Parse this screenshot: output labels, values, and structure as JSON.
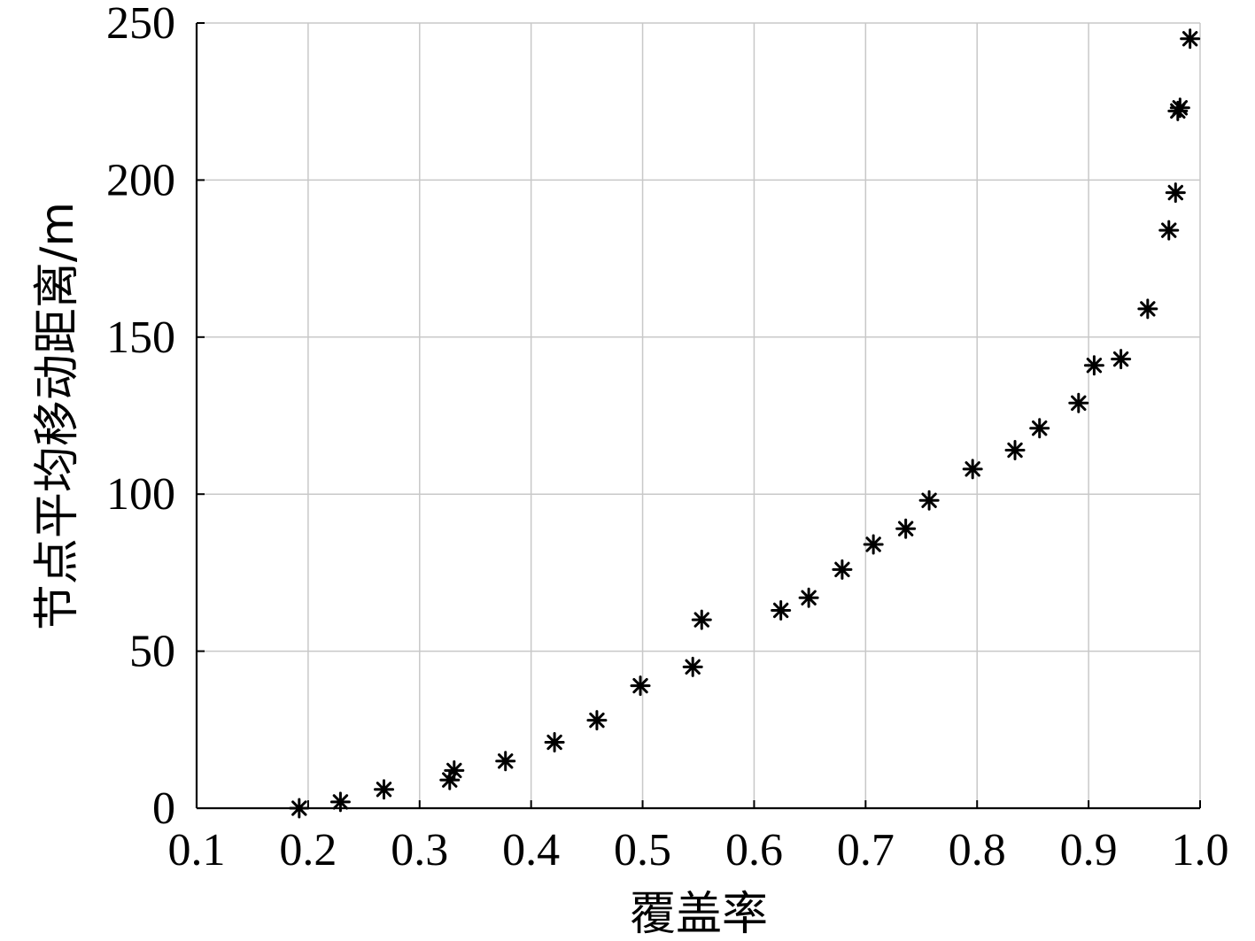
{
  "chart_data": {
    "type": "scatter",
    "title": "",
    "xlabel": "覆盖率",
    "ylabel": "节点平均移动距离/m",
    "xlim": [
      0.1,
      1.0
    ],
    "ylim": [
      0,
      250
    ],
    "xticks": [
      "0.1",
      "0.2",
      "0.3",
      "0.4",
      "0.5",
      "0.6",
      "0.7",
      "0.8",
      "0.9",
      "1.0"
    ],
    "xtick_values": [
      0.1,
      0.2,
      0.3,
      0.4,
      0.5,
      0.6,
      0.7,
      0.8,
      0.9,
      1.0
    ],
    "yticks": [
      "0",
      "50",
      "100",
      "150",
      "200",
      "250"
    ],
    "ytick_values": [
      0,
      50,
      100,
      150,
      200,
      250
    ],
    "grid": true,
    "marker": "asterisk",
    "marker_color": "#000000",
    "series": [
      {
        "points": [
          {
            "x": 0.192,
            "y": 0
          },
          {
            "x": 0.229,
            "y": 2
          },
          {
            "x": 0.268,
            "y": 6
          },
          {
            "x": 0.327,
            "y": 9
          },
          {
            "x": 0.331,
            "y": 12
          },
          {
            "x": 0.377,
            "y": 15
          },
          {
            "x": 0.421,
            "y": 21
          },
          {
            "x": 0.459,
            "y": 28
          },
          {
            "x": 0.498,
            "y": 39
          },
          {
            "x": 0.545,
            "y": 45
          },
          {
            "x": 0.553,
            "y": 60
          },
          {
            "x": 0.624,
            "y": 63
          },
          {
            "x": 0.649,
            "y": 67
          },
          {
            "x": 0.679,
            "y": 76
          },
          {
            "x": 0.707,
            "y": 84
          },
          {
            "x": 0.736,
            "y": 89
          },
          {
            "x": 0.757,
            "y": 98
          },
          {
            "x": 0.796,
            "y": 108
          },
          {
            "x": 0.834,
            "y": 114
          },
          {
            "x": 0.856,
            "y": 121
          },
          {
            "x": 0.891,
            "y": 129
          },
          {
            "x": 0.905,
            "y": 141
          },
          {
            "x": 0.929,
            "y": 143
          },
          {
            "x": 0.953,
            "y": 159
          },
          {
            "x": 0.972,
            "y": 184
          },
          {
            "x": 0.978,
            "y": 196
          },
          {
            "x": 0.98,
            "y": 222
          },
          {
            "x": 0.982,
            "y": 223
          },
          {
            "x": 0.991,
            "y": 245
          }
        ]
      }
    ]
  }
}
